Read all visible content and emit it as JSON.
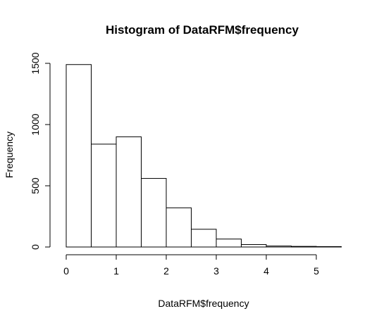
{
  "chart_data": {
    "type": "bar",
    "title": "Histogram of DataRFM$frequency",
    "xlabel": "DataRFM$frequency",
    "ylabel": "Frequency",
    "bins": [
      {
        "start": 0.0,
        "end": 0.5,
        "count": 1490
      },
      {
        "start": 0.5,
        "end": 1.0,
        "count": 840
      },
      {
        "start": 1.0,
        "end": 1.5,
        "count": 900
      },
      {
        "start": 1.5,
        "end": 2.0,
        "count": 560
      },
      {
        "start": 2.0,
        "end": 2.5,
        "count": 320
      },
      {
        "start": 2.5,
        "end": 3.0,
        "count": 145
      },
      {
        "start": 3.0,
        "end": 3.5,
        "count": 65
      },
      {
        "start": 3.5,
        "end": 4.0,
        "count": 20
      },
      {
        "start": 4.0,
        "end": 4.5,
        "count": 8
      },
      {
        "start": 4.5,
        "end": 5.0,
        "count": 5
      },
      {
        "start": 5.0,
        "end": 5.5,
        "count": 2
      }
    ],
    "xticks": [
      0,
      1,
      2,
      3,
      4,
      5
    ],
    "xtick_labels": [
      "0",
      "1",
      "2",
      "3",
      "4",
      "5"
    ],
    "yticks": [
      0,
      500,
      1000,
      1500
    ],
    "ytick_labels": [
      "0",
      "500",
      "1000",
      "1500"
    ],
    "xlim": [
      0,
      5.5
    ],
    "ylim": [
      0,
      1500
    ],
    "grid": false,
    "legend": "none",
    "bar_fill": "#ffffff",
    "bar_stroke": "#000000"
  }
}
